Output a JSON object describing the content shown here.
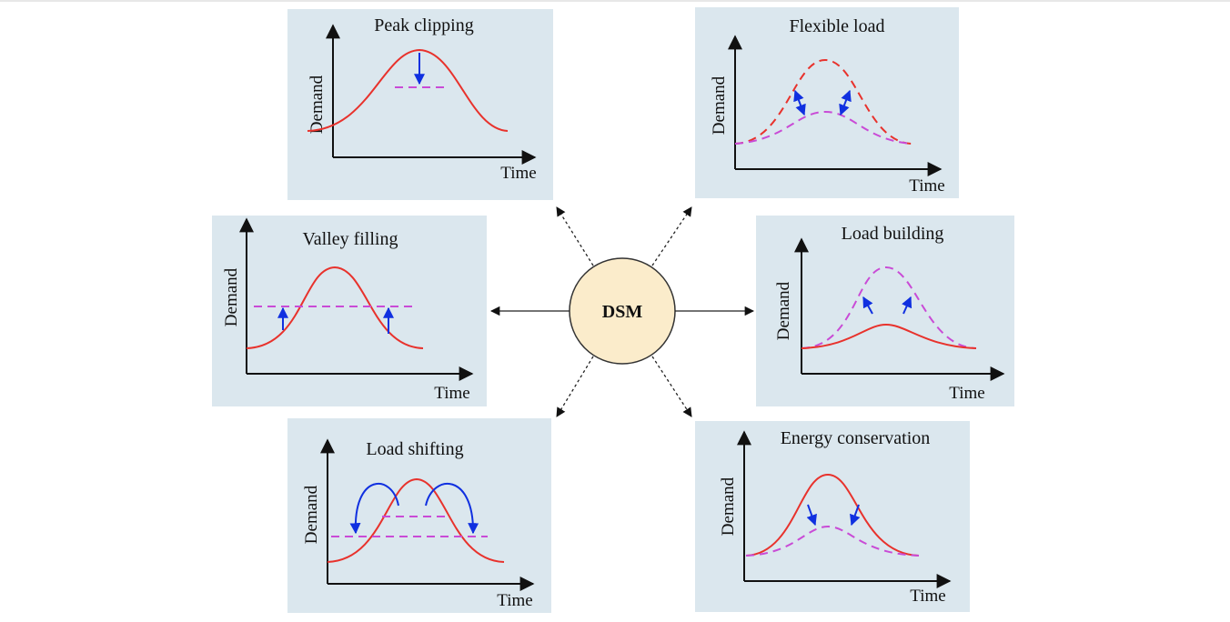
{
  "center": {
    "label": "DSM"
  },
  "panels": [
    {
      "key": "peak_clipping",
      "title": "Peak clipping",
      "ylabel": "Demand",
      "xlabel": "Time"
    },
    {
      "key": "flexible_load",
      "title": "Flexible load",
      "ylabel": "Demand",
      "xlabel": "Time"
    },
    {
      "key": "valley_filling",
      "title": "Valley filling",
      "ylabel": "Demand",
      "xlabel": "Time"
    },
    {
      "key": "load_building",
      "title": "Load building",
      "ylabel": "Demand",
      "xlabel": "Time"
    },
    {
      "key": "load_shifting",
      "title": "Load shifting",
      "ylabel": "Demand",
      "xlabel": "Time"
    },
    {
      "key": "energy_conservation",
      "title": "Energy conservation",
      "ylabel": "Demand",
      "xlabel": "Time"
    }
  ],
  "colors": {
    "panel_background": "#dbe7ee",
    "center_fill": "#fbeccb",
    "original_curve": "#e8322c",
    "modified_curve": "#c94bd6",
    "shift_arrows": "#1030e0"
  }
}
